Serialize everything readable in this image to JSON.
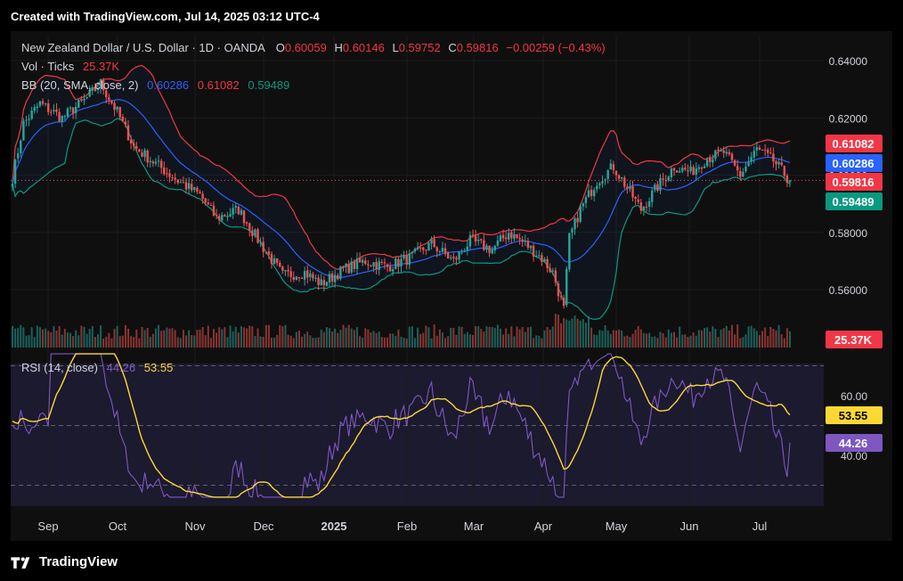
{
  "header": {
    "created": "Created with TradingView.com, Jul 14, 2025 03:12 UTC-4"
  },
  "legend": {
    "symbol": "New Zealand Dollar / U.S. Dollar · 1D · OANDA",
    "o_label": "O",
    "o": "0.60059",
    "h_label": "H",
    "h": "0.60146",
    "l_label": "L",
    "l": "0.59752",
    "c_label": "C",
    "c": "0.59816",
    "change": "−0.00259 (−0.43%)",
    "vol_label": "Vol · Ticks",
    "vol": "25.37K",
    "bb_label": "BB (20, SMA, close, 2)",
    "bb_basis": "0.60286",
    "bb_upper": "0.61082",
    "bb_lower": "0.59489",
    "rsi_label": "RSI (14, close)",
    "rsi_value": "44.26",
    "rsi_ma": "53.55"
  },
  "brand": {
    "name": "TradingView"
  },
  "colors": {
    "up": "#26a69a",
    "down": "#ef5350",
    "basis": "#2962ff",
    "upper": "#f23645",
    "lower": "#089981",
    "rsi": "#7e57c2",
    "rsi_ma": "#fdd835",
    "price_label": "#f23645"
  },
  "chart_data": [
    {
      "type": "candlestick",
      "title": "New Zealand Dollar / U.S. Dollar · 1D · OANDA",
      "x_axis_labels": [
        "Sep",
        "Oct",
        "Nov",
        "Dec",
        "2025",
        "Feb",
        "Mar",
        "Apr",
        "May",
        "Jun",
        "Jul"
      ],
      "y_ticks": [
        "0.64000",
        "0.62000",
        "0.60000",
        "0.58000",
        "0.56000"
      ],
      "ylim": [
        0.546,
        0.647
      ],
      "price_labels": {
        "upper": "0.61082",
        "basis": "0.60286",
        "last": "0.59816",
        "lower": "0.59489",
        "volume": "25.37K"
      },
      "anchors": [
        [
          0,
          0.599
        ],
        [
          4,
          0.618
        ],
        [
          10,
          0.625
        ],
        [
          18,
          0.62
        ],
        [
          26,
          0.626
        ],
        [
          32,
          0.632
        ],
        [
          38,
          0.622
        ],
        [
          44,
          0.61
        ],
        [
          52,
          0.604
        ],
        [
          60,
          0.598
        ],
        [
          68,
          0.593
        ],
        [
          74,
          0.585
        ],
        [
          82,
          0.588
        ],
        [
          90,
          0.576
        ],
        [
          98,
          0.565
        ],
        [
          106,
          0.566
        ],
        [
          112,
          0.562
        ],
        [
          120,
          0.567
        ],
        [
          128,
          0.57
        ],
        [
          136,
          0.568
        ],
        [
          144,
          0.571
        ],
        [
          152,
          0.576
        ],
        [
          160,
          0.57
        ],
        [
          166,
          0.577
        ],
        [
          174,
          0.574
        ],
        [
          180,
          0.58
        ],
        [
          186,
          0.576
        ],
        [
          192,
          0.571
        ],
        [
          196,
          0.566
        ],
        [
          200,
          0.553
        ],
        [
          202,
          0.578
        ],
        [
          206,
          0.588
        ],
        [
          212,
          0.598
        ],
        [
          218,
          0.603
        ],
        [
          224,
          0.594
        ],
        [
          228,
          0.588
        ],
        [
          234,
          0.596
        ],
        [
          240,
          0.603
        ],
        [
          246,
          0.601
        ],
        [
          252,
          0.606
        ],
        [
          258,
          0.608
        ],
        [
          264,
          0.6
        ],
        [
          270,
          0.609
        ],
        [
          276,
          0.605
        ],
        [
          282,
          0.598
        ]
      ],
      "bollinger": {
        "period": 20,
        "mult": 2
      },
      "volume_note": "tick volume histogram at bottom of price pane"
    },
    {
      "type": "line",
      "title": "RSI (14, close)",
      "y_ticks": [
        "60.00",
        "40.00"
      ],
      "ylim": [
        26,
        74
      ],
      "levels": [
        70,
        50,
        30
      ],
      "series": [
        {
          "name": "RSI",
          "last": 44.26
        },
        {
          "name": "RSI MA",
          "last": 53.55
        }
      ]
    }
  ]
}
